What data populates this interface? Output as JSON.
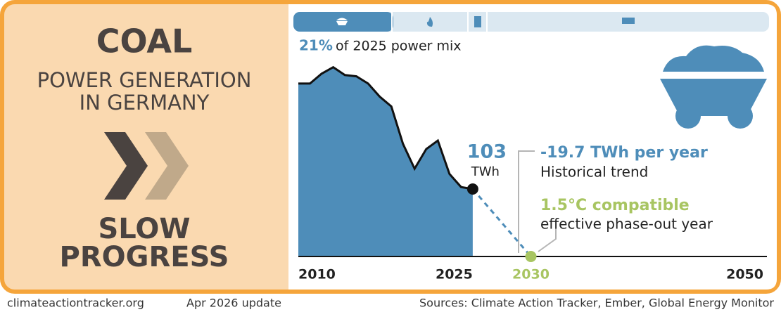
{
  "chart_data": {
    "type": "area",
    "title": "COAL",
    "subtitle_lines": [
      "POWER GENERATION",
      "IN GERMANY"
    ],
    "status_lines": [
      "SLOW",
      "PROGRESS"
    ],
    "share": {
      "value": 21,
      "label": "21%"
    },
    "share_text": "of 2025 power mix",
    "x": [
      2010,
      2011,
      2012,
      2013,
      2014,
      2015,
      2016,
      2017,
      2018,
      2019,
      2020,
      2021,
      2022,
      2023,
      2024,
      2025
    ],
    "series": [
      {
        "name": "Coal power generation",
        "color": "#4e8db9",
        "values": [
          264,
          264,
          279,
          289,
          277,
          275,
          264,
          244,
          229,
          172,
          134,
          164,
          177,
          126,
          106,
          103
        ]
      }
    ],
    "last_value_unit": "TWh",
    "projection": {
      "x": [
        2025,
        2030
      ],
      "values": [
        103,
        0
      ],
      "color": "#4e8db9",
      "end_color": "#a8c562"
    },
    "trend_label": "-19.7 TWh per year",
    "trend_text": "Historical trend",
    "target_label": "1.5°C compatible",
    "target_text": "effective phase-out year",
    "xlim": [
      2010,
      2050
    ],
    "ylim": [
      0,
      310
    ],
    "xticks": [
      2010,
      2025,
      2030,
      2050
    ],
    "footer": {
      "site": "climateactiontracker.org",
      "update": "Apr 2026 update",
      "sources": "Sources: Climate Action Tracker, Ember, Global Energy Monitor"
    }
  }
}
